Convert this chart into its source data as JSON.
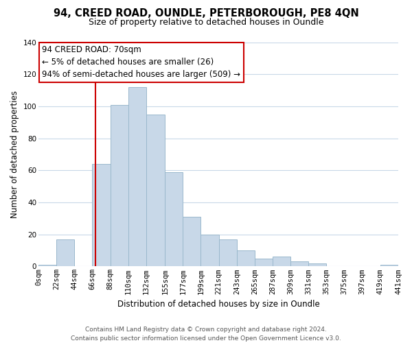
{
  "title1": "94, CREED ROAD, OUNDLE, PETERBOROUGH, PE8 4QN",
  "title2": "Size of property relative to detached houses in Oundle",
  "xlabel": "Distribution of detached houses by size in Oundle",
  "ylabel": "Number of detached properties",
  "bar_edges": [
    0,
    22,
    44,
    66,
    88,
    110,
    132,
    155,
    177,
    199,
    221,
    243,
    265,
    287,
    309,
    331,
    353,
    375,
    397,
    419,
    441
  ],
  "bar_heights": [
    1,
    17,
    0,
    64,
    101,
    112,
    95,
    59,
    31,
    20,
    17,
    10,
    5,
    6,
    3,
    2,
    0,
    0,
    0,
    1
  ],
  "bar_color": "#c8d8e8",
  "bar_edge_color": "#9ab8cc",
  "vline_x": 70,
  "vline_color": "#cc0000",
  "annotation_line1": "94 CREED ROAD: 70sqm",
  "annotation_line2": "← 5% of detached houses are smaller (26)",
  "annotation_line3": "94% of semi-detached houses are larger (509) →",
  "annotation_box_color": "#ffffff",
  "annotation_box_edge_color": "#cc0000",
  "ylim": [
    0,
    140
  ],
  "xlim": [
    0,
    441
  ],
  "tick_labels": [
    "0sqm",
    "22sqm",
    "44sqm",
    "66sqm",
    "88sqm",
    "110sqm",
    "132sqm",
    "155sqm",
    "177sqm",
    "199sqm",
    "221sqm",
    "243sqm",
    "265sqm",
    "287sqm",
    "309sqm",
    "331sqm",
    "353sqm",
    "375sqm",
    "397sqm",
    "419sqm",
    "441sqm"
  ],
  "tick_positions": [
    0,
    22,
    44,
    66,
    88,
    110,
    132,
    155,
    177,
    199,
    221,
    243,
    265,
    287,
    309,
    331,
    353,
    375,
    397,
    419,
    441
  ],
  "ytick_positions": [
    0,
    20,
    40,
    60,
    80,
    100,
    120,
    140
  ],
  "footer_text": "Contains HM Land Registry data © Crown copyright and database right 2024.\nContains public sector information licensed under the Open Government Licence v3.0.",
  "bg_color": "#ffffff",
  "grid_color": "#c8d8e8",
  "title1_fontsize": 10.5,
  "title2_fontsize": 9,
  "axis_fontsize": 8.5,
  "tick_fontsize": 7.5,
  "footer_fontsize": 6.5
}
